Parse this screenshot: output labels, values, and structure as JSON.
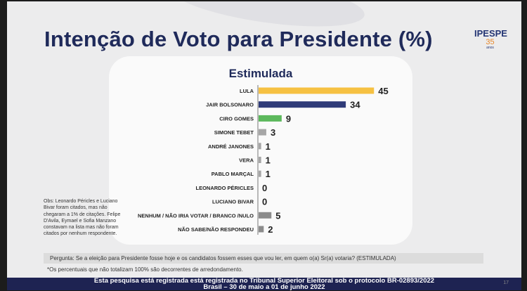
{
  "title": "Intenção de Voto para Presidente (%)",
  "logo": {
    "name": "IPESPE",
    "years": "35",
    "suffix": "anos"
  },
  "chart_data": {
    "type": "bar",
    "orientation": "horizontal",
    "title": "Estimulada",
    "categories": [
      "LULA",
      "JAIR BOLSONARO",
      "CIRO GOMES",
      "SIMONE TEBET",
      "ANDRÉ JANONES",
      "VERA",
      "PABLO MARÇAL",
      "LEONARDO PÉRICLES",
      "LUCIANO BIVAR",
      "NENHUM / NÃO IRIA VOTAR / BRANCO /NULO",
      "NÃO SABE/NÃO RESPONDEU"
    ],
    "values": [
      45,
      34,
      9,
      3,
      1,
      1,
      1,
      0,
      0,
      5,
      2
    ],
    "colors": [
      "#f6c142",
      "#2f3b78",
      "#5cb85c",
      "#a6a6a6",
      "#a6a6a6",
      "#a6a6a6",
      "#a6a6a6",
      "#a6a6a6",
      "#a6a6a6",
      "#8c8c8c",
      "#8c8c8c"
    ],
    "xlim": [
      0,
      50
    ]
  },
  "obs": "Obs: Leonardo Péricles e Luciano Bivar foram citados, mas não chegaram a 1% de citações. Felipe D'Avila, Eymael e Sofia Manzano constavam na lista mas não foram citados por nenhum respondente.",
  "question": "Pergunta:  Se a eleição para Presidente fosse hoje e os candidatos fossem esses que vou ler, em quem o(a) Sr(a) votaria? (ESTIMULADA)",
  "note": "*Os percentuais que não totalizam 100% são decorrentes de arredondamento.",
  "footer": {
    "line1": "Esta pesquisa está registrada está registrada no Tribunal Superior Eleitoral sob o protocolo BR-02893/2022",
    "line2": "Brasil – 30 de maio a 01 de junho 2022",
    "page": "17"
  }
}
